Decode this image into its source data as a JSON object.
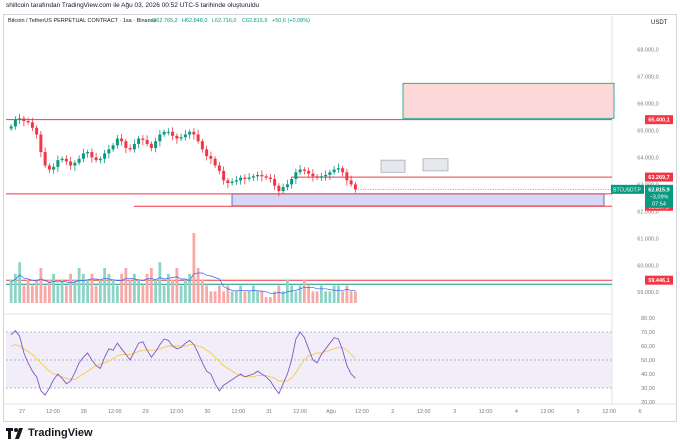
{
  "header": {
    "caption": "shillcoin tarafından TradingView.com ile Ağu 03, 2026 00:52 UTC-5 tarihinde oluşturuldu"
  },
  "legend": {
    "symbol": "Bitcoin / TetherUS PERPETUAL CONTRACT · 1sa · Binance",
    "o": "O62.765,2",
    "h": "H62.848,0",
    "l": "L62.716,0",
    "c": "C62.815,9",
    "chg": "+50,6 (+0,08%)"
  },
  "currency": "USDT",
  "price_axis": {
    "ticks": [
      "68.000,0",
      "67.000,0",
      "66.000,0",
      "65.000,0",
      "64.000,0",
      "63.000,0",
      "62.000,0",
      "61.000,0",
      "60.000,0",
      "59.000,0"
    ],
    "tick_values": [
      68000,
      67000,
      66000,
      65000,
      64000,
      63000,
      62000,
      61000,
      60000,
      59000
    ],
    "tags": [
      {
        "label": "65.400,1",
        "value": 65400.1,
        "color": "#f23645"
      },
      {
        "label": "63.269,7",
        "value": 63269.7,
        "color": "#f23645"
      },
      {
        "label": "62.648,9",
        "value": 62648.9,
        "color": "#f23645"
      },
      {
        "label": "62.187,9",
        "value": 62187.9,
        "color": "#f23645"
      },
      {
        "label": "59.446,1",
        "value": 59446.1,
        "color": "#f23645"
      }
    ],
    "last": {
      "symbol": "BTCUSDT.P",
      "price": "62.815,9",
      "change": "−3,09%",
      "countdown": "07:54",
      "value": 62815.9,
      "color": "#089981"
    }
  },
  "rsi_axis": {
    "ticks": [
      "70,00",
      "60,00",
      "50,00",
      "40,00",
      "30,00",
      "20,00"
    ],
    "tick_values": [
      70,
      60,
      50,
      40,
      30,
      20
    ],
    "top": "80,00",
    "top_value": 80
  },
  "time_axis": {
    "labels": [
      "27",
      "12:00",
      "28",
      "12:00",
      "29",
      "12:00",
      "30",
      "12:00",
      "31",
      "12:00",
      "Ağu",
      "12:00",
      "2",
      "12:00",
      "3",
      "12:00",
      "4",
      "12:00",
      "5",
      "12:00",
      "6"
    ]
  },
  "colors": {
    "up": "#089981",
    "down": "#f23645",
    "rsi": "#7e57c2",
    "rsi_ma": "#f7c948",
    "vol_up": "#8fd3c7",
    "vol_down": "#f7a9a7",
    "level": "#f23645",
    "zone_red": "#fdd8d8",
    "zone_blue": "#d6d8f7"
  },
  "chart_data": {
    "type": "candlestick",
    "timeframe": "1h",
    "ylim": [
      58600,
      68800
    ],
    "levels": [
      65400.1,
      63269.7,
      62648.9,
      62187.9,
      59446.1
    ],
    "zones": [
      {
        "name": "resistance",
        "from_value": 65450,
        "to_value": 66750,
        "color": "red"
      },
      {
        "name": "support",
        "from_value": 62200,
        "to_value": 62650,
        "color": "blue"
      }
    ],
    "price_path": [
      65150,
      65400,
      65450,
      65350,
      65300,
      65100,
      64850,
      64200,
      63700,
      63550,
      63650,
      63900,
      63950,
      63850,
      63700,
      63800,
      63950,
      64150,
      64200,
      64000,
      63900,
      63950,
      64150,
      64300,
      64450,
      64700,
      64600,
      64350,
      64300,
      64500,
      64700,
      64650,
      64500,
      64350,
      64600,
      64850,
      64950,
      64950,
      64800,
      64700,
      64750,
      64850,
      64950,
      64850,
      64600,
      64300,
      64050,
      63950,
      63700,
      63500,
      63150,
      63050,
      63100,
      63150,
      63250,
      63200,
      63250,
      63300,
      63350,
      63300,
      63250,
      63200,
      62950,
      62750,
      62900,
      63000,
      63200,
      63450,
      63550,
      63500,
      63400,
      63300,
      63250,
      63300,
      63350,
      63450,
      63550,
      63600,
      63450,
      63150,
      63000,
      62815.9
    ],
    "volume": [
      4,
      5,
      7,
      3,
      4,
      3,
      4,
      6,
      3,
      4,
      5,
      3,
      4,
      3,
      5,
      4,
      6,
      5,
      4,
      5,
      3,
      4,
      6,
      5,
      4,
      3,
      5,
      6,
      4,
      5,
      4,
      3,
      5,
      6,
      4,
      7,
      3,
      5,
      4,
      6,
      3,
      4,
      5,
      12,
      6,
      4,
      3,
      2,
      2,
      3,
      2,
      3,
      2,
      2,
      3,
      2,
      2,
      3,
      2,
      2,
      1,
      1,
      2,
      3,
      2,
      4,
      3,
      2,
      3,
      4,
      3,
      2,
      2,
      3,
      2,
      2,
      3,
      3,
      2,
      3,
      2,
      2
    ],
    "rsi": [
      68,
      71,
      67,
      55,
      48,
      42,
      38,
      28,
      25,
      30,
      36,
      40,
      37,
      33,
      35,
      41,
      48,
      52,
      55,
      50,
      46,
      44,
      52,
      58,
      57,
      62,
      58,
      54,
      50,
      56,
      62,
      63,
      57,
      52,
      56,
      61,
      65,
      64,
      60,
      58,
      59,
      62,
      64,
      61,
      55,
      48,
      42,
      40,
      33,
      28,
      32,
      34,
      36,
      38,
      40,
      38,
      39,
      40,
      42,
      40,
      38,
      35,
      30,
      26,
      33,
      40,
      50,
      65,
      70,
      66,
      58,
      50,
      48,
      54,
      58,
      62,
      66,
      65,
      57,
      46,
      40,
      37
    ],
    "rsi_ma": [
      60,
      61,
      60,
      58,
      56,
      54,
      51,
      48,
      45,
      42,
      40,
      39,
      38,
      37,
      36,
      36,
      38,
      40,
      42,
      44,
      46,
      47,
      48,
      49,
      51,
      53,
      54,
      54,
      54,
      55,
      56,
      57,
      57,
      57,
      57,
      58,
      59,
      60,
      60,
      60,
      60,
      60,
      61,
      61,
      60,
      59,
      57,
      55,
      52,
      49,
      46,
      44,
      42,
      40,
      39,
      38,
      38,
      38,
      39,
      39,
      39,
      38,
      37,
      35,
      35,
      35,
      37,
      41,
      46,
      50,
      53,
      54,
      55,
      55,
      56,
      57,
      58,
      59,
      59,
      57,
      54,
      51
    ],
    "rsi_bands": [
      70,
      50,
      30
    ]
  }
}
